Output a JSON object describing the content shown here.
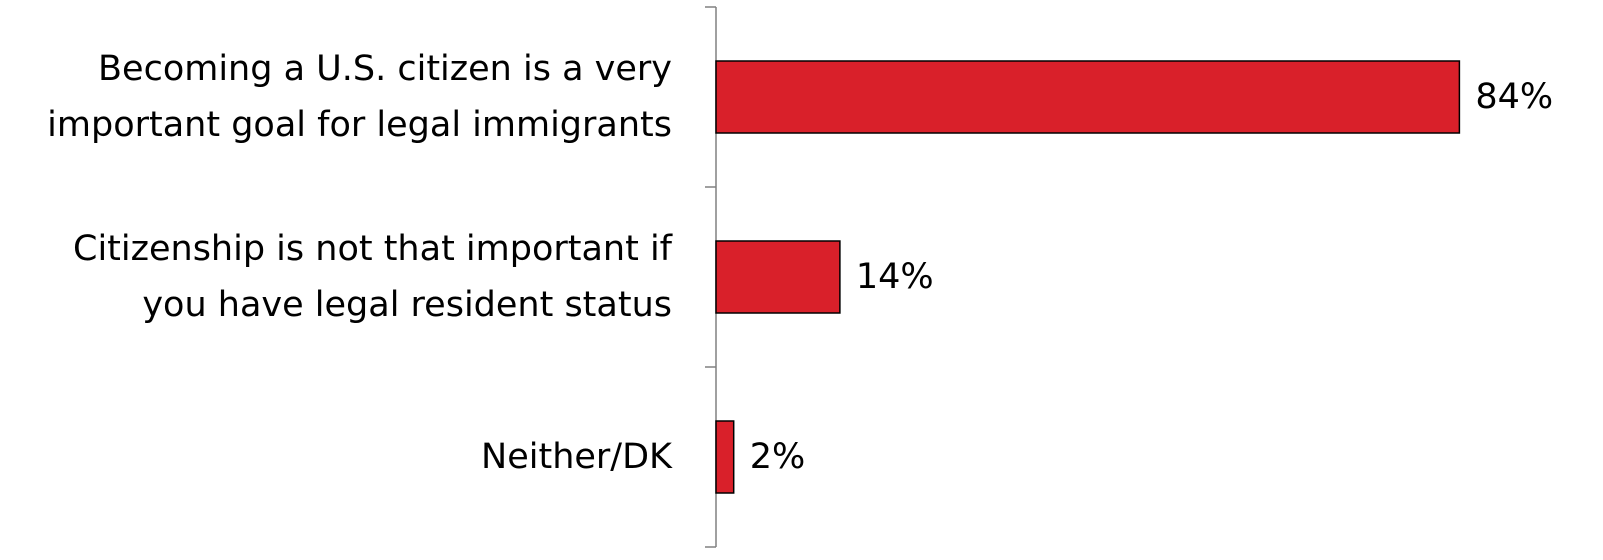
{
  "chart_data": {
    "type": "bar",
    "orientation": "horizontal",
    "categories": [
      [
        "Becoming a U.S. citizen is a very",
        "important goal for legal immigrants"
      ],
      [
        "Citizenship is not that important if",
        "you have legal resident status"
      ],
      [
        "Neither/DK"
      ]
    ],
    "values": [
      84,
      14,
      2
    ],
    "value_labels": [
      "84%",
      "14%",
      "2%"
    ],
    "xlim": [
      0,
      100
    ],
    "grid": false,
    "legend": "none",
    "colors": {
      "bar_fill": "#d9202a",
      "bar_stroke": "#000000",
      "axis": "#808080"
    }
  }
}
